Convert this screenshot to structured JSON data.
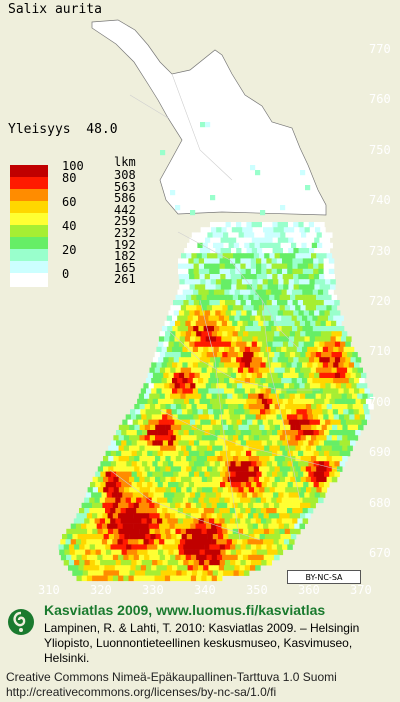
{
  "title": "Salix aurita",
  "frequency_label": "Yleisyys",
  "frequency_value": "48.0",
  "legend": {
    "header": "lkm",
    "bins": [
      {
        "label": "100",
        "color": "#c00000",
        "count": "308"
      },
      {
        "label": "80",
        "color": "#ff1a00",
        "count": "563"
      },
      {
        "label": "",
        "color": "#ff8c00",
        "count": "586"
      },
      {
        "label": "60",
        "color": "#ffd700",
        "count": "442"
      },
      {
        "label": "",
        "color": "#ffff33",
        "count": "259"
      },
      {
        "label": "40",
        "color": "#a6ee33",
        "count": "232"
      },
      {
        "label": "",
        "color": "#66ee66",
        "count": "192"
      },
      {
        "label": "20",
        "color": "#99ffcc",
        "count": "182"
      },
      {
        "label": "",
        "color": "#ccffff",
        "count": "165"
      },
      {
        "label": "0",
        "color": "#ffffff",
        "count": "261"
      }
    ]
  },
  "map_colors": {
    "background": "#efefdc",
    "land_white": "#ffffff",
    "grid_lines": "#b0b0b0"
  },
  "y_axis_labels": [
    "770",
    "760",
    "750",
    "740",
    "730",
    "720",
    "710",
    "700",
    "690",
    "680",
    "670"
  ],
  "x_axis_labels": [
    "310",
    "320",
    "330",
    "340",
    "350",
    "360",
    "370"
  ],
  "cc_badge": "BY-NC-SA",
  "footer": {
    "title": "Kasviatlas 2009, www.luomus.fi/kasviatlas",
    "citation": "Lampinen, R. & Lahti, T. 2010: Kasviatlas 2009. – Helsingin Yliopisto, Luonnontieteellinen keskusmuseo, Kasvimuseo, Helsinki.",
    "license": "Creative Commons Nimeä-Epäkaupallinen-Tarttuva 1.0 Suomi http://creativecommons.org/licenses/by-nc-sa/1.0/fi"
  }
}
